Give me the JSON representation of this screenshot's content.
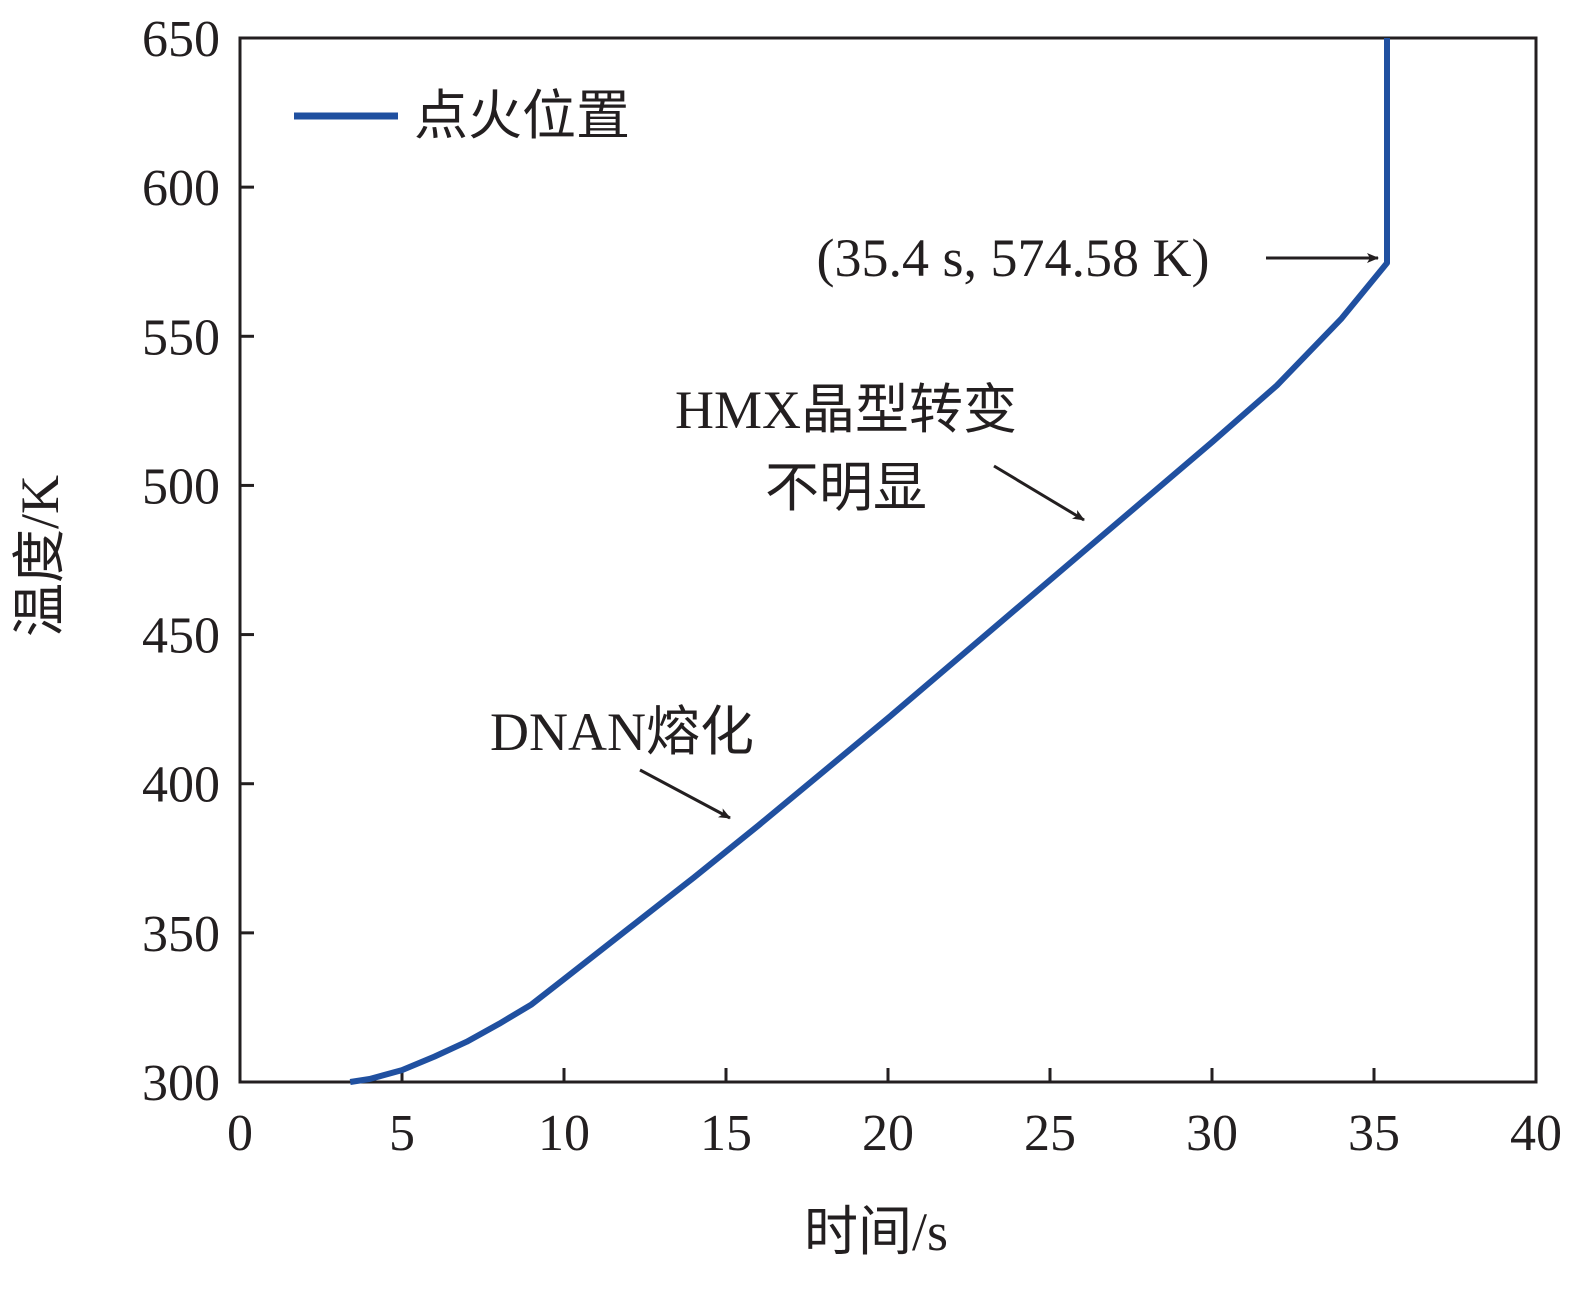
{
  "chart_data": {
    "type": "line",
    "xlabel": "时间/s",
    "ylabel": "温度/K",
    "xlim": [
      0,
      40
    ],
    "ylim": [
      300,
      650
    ],
    "xticks": [
      0,
      5,
      10,
      15,
      20,
      25,
      30,
      35,
      40
    ],
    "yticks": [
      300,
      350,
      400,
      450,
      500,
      550,
      600,
      650
    ],
    "grid": false,
    "legend_position": "top-left",
    "series": [
      {
        "name": "点火位置",
        "color": "#2050a0",
        "x": [
          3.4,
          4.0,
          5.0,
          6.0,
          7.0,
          8.0,
          9.0,
          10.0,
          12.0,
          14.0,
          16.0,
          18.0,
          20.0,
          22.0,
          24.0,
          26.0,
          28.0,
          30.0,
          32.0,
          34.0,
          35.4,
          35.4
        ],
        "y": [
          300.0,
          301.0,
          304.0,
          308.5,
          313.5,
          319.5,
          326.0,
          334.5,
          351.5,
          368.5,
          386.0,
          404.0,
          422.0,
          440.5,
          459.0,
          477.5,
          496.0,
          514.5,
          533.5,
          556.0,
          574.58,
          650.0
        ]
      }
    ],
    "annotations": [
      {
        "id": "ignition_point",
        "text": "(35.4 s, 574.58 K)",
        "point": [
          35.4,
          574.58
        ]
      },
      {
        "id": "hmx_transition",
        "line1": "HMX晶型转变",
        "line2": "不明显",
        "point": [
          26.2,
          487.0
        ]
      },
      {
        "id": "dnan_melting",
        "text": "DNAN熔化",
        "point": [
          15.4,
          387.0
        ]
      }
    ]
  }
}
